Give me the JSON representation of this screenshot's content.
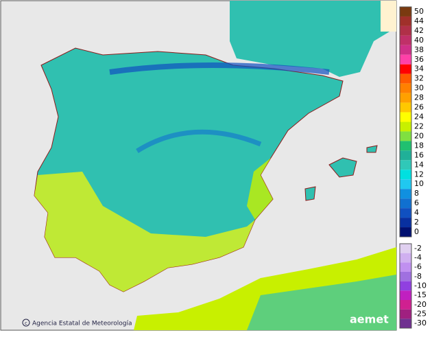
{
  "footer": {
    "agency": "Agencia Estatal de Meteorología",
    "logo": "aemet"
  },
  "legend": {
    "warm": [
      {
        "value": 50,
        "color": "#7a3a10"
      },
      {
        "value": 44,
        "color": "#a0302a"
      },
      {
        "value": 42,
        "color": "#b03048"
      },
      {
        "value": 40,
        "color": "#c03068"
      },
      {
        "value": 38,
        "color": "#d03088"
      },
      {
        "value": 36,
        "color": "#ff40a8"
      },
      {
        "value": 34,
        "color": "#ff0000"
      },
      {
        "value": 32,
        "color": "#ff5a00"
      },
      {
        "value": 30,
        "color": "#ff8000"
      },
      {
        "value": 28,
        "color": "#ffa000"
      },
      {
        "value": 26,
        "color": "#ffc800"
      },
      {
        "value": 24,
        "color": "#ffff00"
      },
      {
        "value": 22,
        "color": "#c8f000"
      },
      {
        "value": 20,
        "color": "#80e040"
      },
      {
        "value": 18,
        "color": "#20c070"
      },
      {
        "value": 16,
        "color": "#20b098"
      },
      {
        "value": 14,
        "color": "#30c8b8"
      },
      {
        "value": 12,
        "color": "#00e0e0"
      },
      {
        "value": 10,
        "color": "#20c8f0"
      },
      {
        "value": 8,
        "color": "#1090e0"
      },
      {
        "value": 6,
        "color": "#1070d0"
      },
      {
        "value": 4,
        "color": "#1050c0"
      },
      {
        "value": 2,
        "color": "#0830a0"
      },
      {
        "value": 0,
        "color": "#001070"
      }
    ],
    "cold": [
      {
        "value": -2,
        "color": "#e0d0f0"
      },
      {
        "value": -4,
        "color": "#d0b0f0"
      },
      {
        "value": -6,
        "color": "#c090f0"
      },
      {
        "value": -8,
        "color": "#a070e0"
      },
      {
        "value": -10,
        "color": "#9040e0"
      },
      {
        "value": -15,
        "color": "#c020c0"
      },
      {
        "value": -20,
        "color": "#d02090"
      },
      {
        "value": -25,
        "color": "#a02080"
      },
      {
        "value": -30,
        "color": "#703090"
      }
    ]
  }
}
